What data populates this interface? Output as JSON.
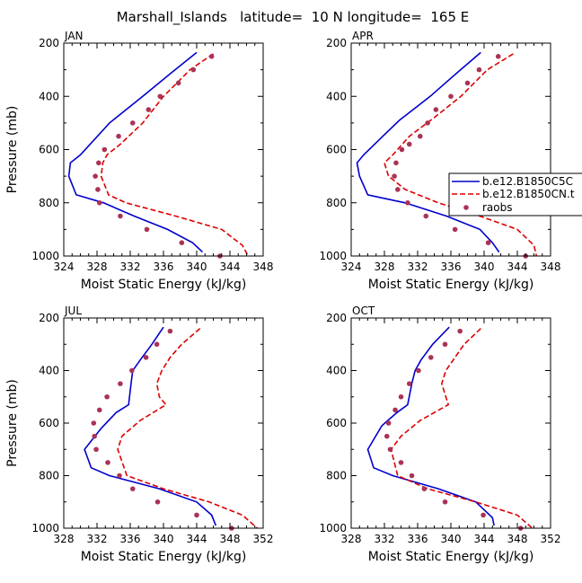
{
  "figure": {
    "title": "Marshall_Islands   latitude=  10 N longitude=  165 E"
  },
  "chart_data": [
    {
      "type": "line",
      "title": "JAN",
      "xlabel": "Moist Static Energy (kJ/kg)",
      "ylabel": "Pressure (mb)",
      "xlim": [
        324,
        348
      ],
      "ylim": [
        1000,
        200
      ],
      "xticks": [
        "324",
        "328",
        "332",
        "336",
        "340",
        "344",
        "348"
      ],
      "yticks": [
        "200",
        "400",
        "600",
        "800",
        "1000"
      ],
      "series": [
        {
          "name": "b.e12.B1850C5C",
          "color": "#0000cc",
          "style": "solid",
          "x": [
            340.0,
            337.0,
            333.5,
            329.5,
            326.0,
            324.8,
            324.6,
            325.5,
            328.8,
            332.5,
            336.5,
            339.5,
            340.7
          ],
          "y": [
            235,
            310,
            400,
            500,
            620,
            650,
            700,
            770,
            800,
            850,
            900,
            950,
            985
          ]
        },
        {
          "name": "b.e12.B1850CN.t",
          "color": "#dd0000",
          "style": "dashed",
          "x": [
            342.0,
            339.2,
            336.0,
            333.5,
            330.8,
            329.2,
            328.7,
            328.5,
            329.4,
            331.5,
            337.5,
            343.0,
            345.5,
            346.2
          ],
          "y": [
            240,
            300,
            400,
            500,
            580,
            620,
            650,
            700,
            770,
            800,
            850,
            900,
            960,
            1000
          ]
        },
        {
          "name": "raobs",
          "color": "#aa3355",
          "style": "dots",
          "x": [
            341.8,
            339.6,
            337.8,
            335.6,
            334.2,
            332.3,
            330.6,
            328.9,
            328.2,
            327.8,
            328.1,
            328.3,
            330.8,
            334.0,
            338.2,
            342.8
          ],
          "y": [
            250,
            300,
            350,
            400,
            450,
            500,
            550,
            600,
            650,
            700,
            750,
            800,
            850,
            900,
            950,
            1000
          ]
        }
      ]
    },
    {
      "type": "line",
      "title": "APR",
      "xlabel": "Moist Static Energy (kJ/kg)",
      "ylabel": "",
      "xlim": [
        324,
        348
      ],
      "ylim": [
        1000,
        200
      ],
      "xticks": [
        "324",
        "328",
        "332",
        "336",
        "340",
        "344",
        "348"
      ],
      "yticks": [
        "200",
        "400",
        "600",
        "800",
        "1000"
      ],
      "series": [
        {
          "name": "b.e12.B1850C5C",
          "color": "#0000cc",
          "style": "solid",
          "x": [
            339.6,
            336.8,
            333.5,
            329.8,
            327.8,
            325.5,
            324.7,
            325.0,
            326.0,
            330.5,
            335.5,
            339.5,
            341.0,
            341.8
          ],
          "y": [
            235,
            310,
            400,
            490,
            550,
            620,
            650,
            700,
            770,
            800,
            850,
            900,
            950,
            985
          ]
        },
        {
          "name": "b.e12.B1850CN.t",
          "color": "#dd0000",
          "style": "dashed",
          "x": [
            343.5,
            340.4,
            337.2,
            334.0,
            331.0,
            329.0,
            328.0,
            328.5,
            330.5,
            334.5,
            339.5,
            344.0,
            346.0,
            346.3
          ],
          "y": [
            240,
            300,
            400,
            480,
            550,
            620,
            650,
            700,
            750,
            800,
            850,
            900,
            960,
            1000
          ]
        },
        {
          "name": "raobs",
          "color": "#aa3355",
          "style": "dots",
          "x": [
            341.7,
            339.4,
            338.0,
            336.0,
            334.2,
            333.2,
            332.3,
            331.0,
            330.1,
            329.4,
            329.2,
            329.6,
            330.8,
            333.0,
            336.5,
            340.5,
            345.0
          ],
          "y": [
            250,
            300,
            350,
            400,
            450,
            500,
            550,
            580,
            600,
            650,
            700,
            750,
            800,
            850,
            900,
            950,
            1000
          ]
        }
      ]
    },
    {
      "type": "line",
      "title": "JUL",
      "xlabel": "Moist Static Energy (kJ/kg)",
      "ylabel": "Pressure (mb)",
      "xlim": [
        328,
        352
      ],
      "ylim": [
        1000,
        200
      ],
      "xticks": [
        "328",
        "332",
        "336",
        "340",
        "344",
        "348",
        "352"
      ],
      "yticks": [
        "200",
        "400",
        "600",
        "800",
        "1000"
      ],
      "series": [
        {
          "name": "b.e12.B1850C5C",
          "color": "#0000cc",
          "style": "solid",
          "x": [
            340.0,
            338.6,
            337.2,
            336.3,
            336.1,
            335.8,
            334.3,
            332.5,
            330.5,
            331.3,
            333.5,
            339.5,
            344.0,
            345.8,
            346.3
          ],
          "y": [
            235,
            300,
            360,
            400,
            450,
            530,
            560,
            620,
            700,
            770,
            800,
            850,
            900,
            950,
            990
          ]
        },
        {
          "name": "b.e12.B1850CN.t",
          "color": "#dd0000",
          "style": "dashed",
          "x": [
            344.4,
            342.2,
            340.8,
            339.8,
            339.2,
            339.5,
            340.3,
            337.2,
            335.0,
            334.5,
            335.6,
            340.0,
            345.5,
            349.5,
            351.3
          ],
          "y": [
            240,
            300,
            350,
            400,
            450,
            500,
            530,
            590,
            650,
            700,
            800,
            850,
            900,
            950,
            1000
          ]
        },
        {
          "name": "raobs",
          "color": "#aa3355",
          "style": "dots",
          "x": [
            340.8,
            339.2,
            337.9,
            336.2,
            334.8,
            333.2,
            332.3,
            331.6,
            331.7,
            331.9,
            333.3,
            334.7,
            336.3,
            339.3,
            344.0,
            348.2
          ],
          "y": [
            250,
            300,
            350,
            400,
            450,
            500,
            550,
            600,
            650,
            700,
            750,
            800,
            850,
            900,
            950,
            1000
          ]
        }
      ]
    },
    {
      "type": "line",
      "title": "OCT",
      "xlabel": "Moist Static Energy (kJ/kg)",
      "ylabel": "",
      "xlim": [
        328,
        352
      ],
      "ylim": [
        1000,
        200
      ],
      "xticks": [
        "328",
        "332",
        "336",
        "340",
        "344",
        "348",
        "352"
      ],
      "yticks": [
        "200",
        "400",
        "600",
        "800",
        "1000"
      ],
      "series": [
        {
          "name": "b.e12.B1850C5C",
          "color": "#0000cc",
          "style": "solid",
          "x": [
            339.8,
            337.8,
            336.4,
            335.7,
            335.3,
            334.8,
            333.5,
            331.7,
            330.0,
            330.7,
            333.0,
            338.5,
            343.0,
            345.0,
            345.2
          ],
          "y": [
            235,
            300,
            360,
            400,
            450,
            530,
            560,
            610,
            700,
            770,
            800,
            850,
            900,
            960,
            990
          ]
        },
        {
          "name": "b.e12.B1850CN.t",
          "color": "#dd0000",
          "style": "dashed",
          "x": [
            343.6,
            341.6,
            340.5,
            339.4,
            338.9,
            339.4,
            339.7,
            336.3,
            334.0,
            332.8,
            333.6,
            337.2,
            343.0,
            348.0,
            349.8
          ],
          "y": [
            240,
            300,
            350,
            400,
            450,
            500,
            530,
            590,
            650,
            700,
            800,
            850,
            900,
            950,
            1000
          ]
        },
        {
          "name": "raobs",
          "color": "#aa3355",
          "style": "dots",
          "x": [
            341.1,
            339.3,
            337.6,
            336.1,
            335.0,
            334.0,
            333.3,
            332.5,
            332.3,
            332.7,
            334.0,
            335.3,
            336.8,
            339.3,
            343.9,
            348.4
          ],
          "y": [
            250,
            300,
            350,
            400,
            450,
            500,
            550,
            600,
            650,
            700,
            750,
            800,
            850,
            900,
            950,
            1000
          ]
        }
      ]
    }
  ],
  "legend": {
    "entries": [
      "b.e12.B1850C5C",
      "b.e12.B1850CN.t",
      "raobs"
    ]
  }
}
